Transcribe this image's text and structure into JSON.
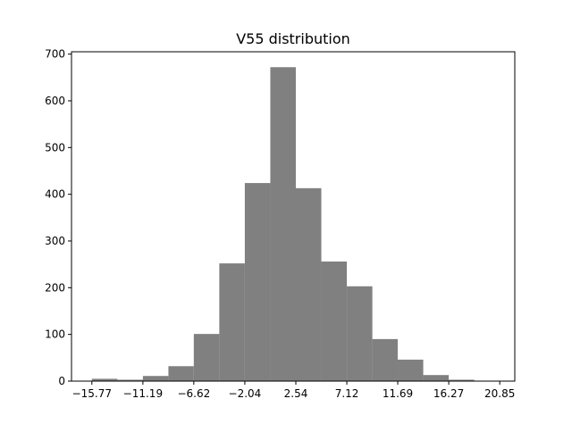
{
  "chart_data": {
    "type": "bar",
    "title": "V55 distribution",
    "xlabel": "",
    "ylabel": "",
    "bin_edges": [
      -15.77,
      -13.48,
      -11.19,
      -8.9,
      -6.62,
      -4.33,
      -2.04,
      0.25,
      2.54,
      4.83,
      7.12,
      9.41,
      11.69,
      13.98,
      16.27,
      18.56,
      20.85
    ],
    "counts": [
      5,
      3,
      11,
      32,
      101,
      252,
      424,
      672,
      413,
      256,
      203,
      90,
      46,
      13,
      3,
      0
    ],
    "xticks": [
      -15.77,
      -11.19,
      -6.62,
      -2.04,
      2.54,
      7.12,
      11.69,
      16.27,
      20.85
    ],
    "xtick_labels": [
      "−15.77",
      "−11.19",
      "−6.62",
      "−2.04",
      "2.54",
      "7.12",
      "11.69",
      "16.27",
      "20.85"
    ],
    "yticks": [
      0,
      100,
      200,
      300,
      400,
      500,
      600,
      700
    ],
    "ytick_labels": [
      "0",
      "100",
      "200",
      "300",
      "400",
      "500",
      "600",
      "700"
    ],
    "xlim": [
      -17.6,
      22.2
    ],
    "ylim": [
      0,
      705
    ],
    "bar_color": "#808080",
    "grid": false,
    "legend": "none"
  }
}
